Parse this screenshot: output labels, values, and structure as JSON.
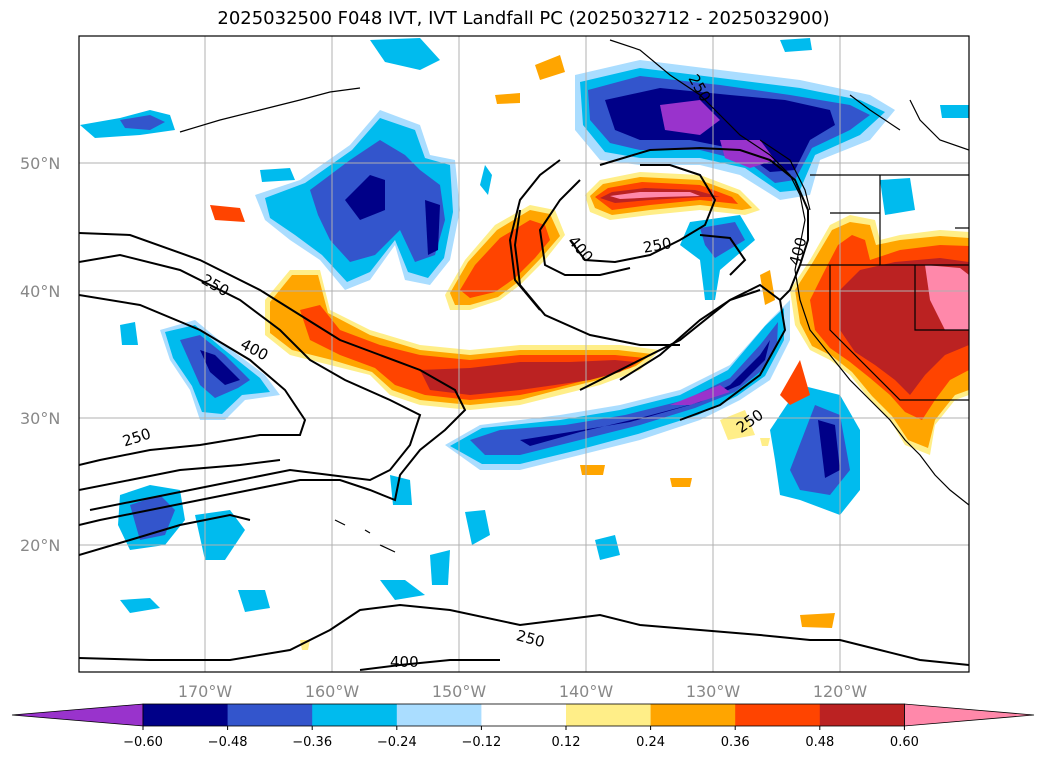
{
  "title": "2025032500 F048 IVT, IVT Landfall PC (2025032712 - 2025032900)",
  "map": {
    "lat_labels": [
      "50°N",
      "40°N",
      "30°N",
      "20°N"
    ],
    "lon_labels": [
      "170°W",
      "160°W",
      "150°W",
      "140°W",
      "130°W",
      "120°W"
    ],
    "contour_labels": [
      "250",
      "400",
      "250",
      "400",
      "250",
      "250",
      "400",
      "250",
      "250",
      "400"
    ]
  },
  "colorbar": {
    "ticks": [
      "−0.60",
      "−0.48",
      "−0.36",
      "−0.24",
      "−0.12",
      "0.12",
      "0.24",
      "0.36",
      "0.48",
      "0.60"
    ],
    "colors": [
      "#9933cc",
      "#000088",
      "#3355cc",
      "#00bbee",
      "#aaddff",
      "#ffffff",
      "#ffee88",
      "#ffa500",
      "#ff4400",
      "#bb2222",
      "#ff88aa"
    ]
  }
}
